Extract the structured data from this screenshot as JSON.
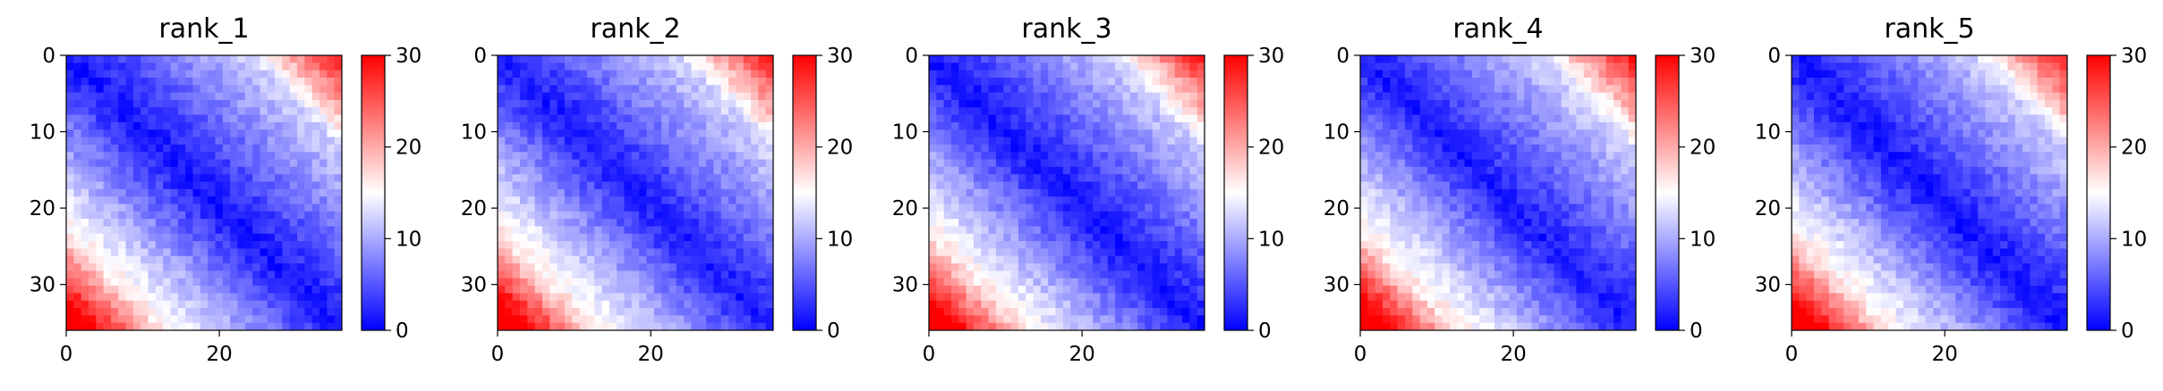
{
  "chart_data": {
    "type": "heatmap",
    "colormap": "bwr",
    "colors": {
      "low": "#0000ff",
      "mid": "#ffffff",
      "high": "#ff0000"
    },
    "matrix_size": 37,
    "vmin": 0,
    "vmax": 30,
    "colorbar_ticks": [
      "0",
      "10",
      "20",
      "30"
    ],
    "colorbar_values": [
      0,
      10,
      20,
      30
    ],
    "x_ticks": [
      "0",
      "20"
    ],
    "x_tick_values": [
      0,
      20
    ],
    "y_ticks": [
      "0",
      "10",
      "20",
      "30"
    ],
    "y_tick_values": [
      0,
      10,
      20,
      30
    ],
    "grid": false,
    "panels": [
      {
        "title": "rank_1"
      },
      {
        "title": "rank_2"
      },
      {
        "title": "rank_3"
      },
      {
        "title": "rank_4"
      },
      {
        "title": "rank_5"
      }
    ]
  }
}
